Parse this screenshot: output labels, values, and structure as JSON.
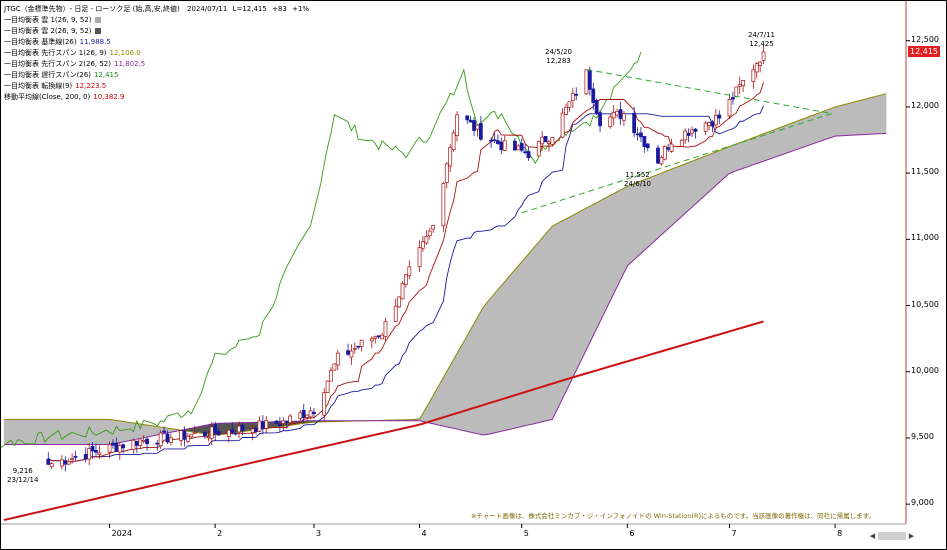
{
  "header": {
    "title": "JTGC（金標準先物）- 日足 - ローソク足 (始,高,安,終値)",
    "date": "2024/07/11",
    "last": "L=12,415",
    "change": "+83",
    "change_pct": "+1%"
  },
  "legend": [
    {
      "label": "一目均衡表 雲 1(26, 9, 52)",
      "value": "",
      "color": "#aaaaaa",
      "kind": "swatch"
    },
    {
      "label": "一目均衡表 雲 2(26, 9, 52)",
      "value": "",
      "color": "#555555",
      "kind": "swatch"
    },
    {
      "label": "一目均衡表 基準線(26)",
      "value": "11,988.5",
      "color": "#1a1aa0",
      "kind": "text"
    },
    {
      "label": "一目均衡表 先行スパン 1(26, 9)",
      "value": "12,106.0",
      "color": "#8a8a00",
      "kind": "text"
    },
    {
      "label": "一目均衡表 先行スパン 2(26, 52)",
      "value": "11,802.5",
      "color": "#8a2aa0",
      "kind": "text"
    },
    {
      "label": "一目均衡表 遅行スパン(26)",
      "value": "12,415",
      "color": "#1a8a1a",
      "kind": "text"
    },
    {
      "label": "一目均衡表 転換線(9)",
      "value": "12,223.5",
      "color": "#cc0000",
      "kind": "text"
    },
    {
      "label": "移動平均線(Close, 200, 0)",
      "value": "10,382.9",
      "color": "#cc0000",
      "kind": "text"
    }
  ],
  "annotations": {
    "low_value": "9,216",
    "low_date": "23/12/14",
    "peak1_date": "24/5/20",
    "peak1_value": "12,283",
    "trough_value": "11,552",
    "trough_date": "24/6/10",
    "peak2_date": "24/7/11",
    "peak2_value": "12,425"
  },
  "last_price_label": "12,415",
  "footnote": "※チャート画像は、株式会社ミンカブ・ジ・インフォノイドの Win-Station(R)によるものです。当該画像の著作権は、同社に帰属します。",
  "scroll": {
    "left": "◀",
    "right": "▶"
  },
  "colors": {
    "up_candle": "#ffffff",
    "down_candle": "#1a1aa0",
    "kijun": "#1a1aa0",
    "tenkan": "#aa1111",
    "chikou": "#3a9a1a",
    "span1": "#8a8a00",
    "span2": "#8a2aa0",
    "cloud_bull": "#bbbbbb",
    "cloud_bear": "#555555",
    "sma": "#cc1111",
    "triangle": "#33aa33"
  },
  "chart_data": {
    "type": "candlestick",
    "y_axis": {
      "min": 8850,
      "max": 12800,
      "ticks": [
        9000,
        9500,
        10000,
        10500,
        11000,
        11500,
        12000,
        12500
      ],
      "tick_labels": [
        "9,000",
        "9,500",
        "10,000",
        "10,500",
        "11,000",
        "11,500",
        "12,000",
        "12,500"
      ]
    },
    "x_axis": {
      "month_labels": [
        {
          "label": "2024",
          "month": "2024-01"
        },
        {
          "label": "2",
          "month": "2024-02"
        },
        {
          "label": "3",
          "month": "2024-03"
        },
        {
          "label": "4",
          "month": "2024-04"
        },
        {
          "label": "5",
          "month": "2024-05"
        },
        {
          "label": "6",
          "month": "2024-06"
        },
        {
          "label": "7",
          "month": "2024-07"
        },
        {
          "label": "8",
          "month": "2024-08"
        }
      ]
    },
    "close_anchors": [
      {
        "date": "2023-12-14",
        "close": 9300
      },
      {
        "date": "2023-12-28",
        "close": 9400
      },
      {
        "date": "2024-01-10",
        "close": 9480
      },
      {
        "date": "2024-01-24",
        "close": 9520
      },
      {
        "date": "2024-02-07",
        "close": 9560
      },
      {
        "date": "2024-02-21",
        "close": 9620
      },
      {
        "date": "2024-03-01",
        "close": 9720
      },
      {
        "date": "2024-03-08",
        "close": 10100
      },
      {
        "date": "2024-03-21",
        "close": 10300
      },
      {
        "date": "2024-03-28",
        "close": 10700
      },
      {
        "date": "2024-04-05",
        "close": 11100
      },
      {
        "date": "2024-04-12",
        "close": 11950
      },
      {
        "date": "2024-04-19",
        "close": 11800
      },
      {
        "date": "2024-04-26",
        "close": 11700
      },
      {
        "date": "2024-05-03",
        "close": 11650
      },
      {
        "date": "2024-05-10",
        "close": 11800
      },
      {
        "date": "2024-05-20",
        "close": 12250
      },
      {
        "date": "2024-05-24",
        "close": 11900
      },
      {
        "date": "2024-05-31",
        "close": 11950
      },
      {
        "date": "2024-06-10",
        "close": 11600
      },
      {
        "date": "2024-06-14",
        "close": 11750
      },
      {
        "date": "2024-06-21",
        "close": 11850
      },
      {
        "date": "2024-06-28",
        "close": 11920
      },
      {
        "date": "2024-07-04",
        "close": 12150
      },
      {
        "date": "2024-07-11",
        "close": 12415
      }
    ],
    "sma200": [
      {
        "date": "2023-12-01",
        "value": 8880
      },
      {
        "date": "2024-02-01",
        "value": 9250
      },
      {
        "date": "2024-04-01",
        "value": 9600
      },
      {
        "date": "2024-05-15",
        "value": 9950
      },
      {
        "date": "2024-07-11",
        "value": 10380
      }
    ],
    "cloud_span1": [
      {
        "date": "2023-12-01",
        "value": 9640
      },
      {
        "date": "2024-01-01",
        "value": 9640
      },
      {
        "date": "2024-02-01",
        "value": 9520
      },
      {
        "date": "2024-03-01",
        "value": 9620
      },
      {
        "date": "2024-04-01",
        "value": 9640
      },
      {
        "date": "2024-04-20",
        "value": 10500
      },
      {
        "date": "2024-05-10",
        "value": 11100
      },
      {
        "date": "2024-06-01",
        "value": 11400
      },
      {
        "date": "2024-07-01",
        "value": 11700
      },
      {
        "date": "2024-08-01",
        "value": 12000
      },
      {
        "date": "2024-08-16",
        "value": 12100
      }
    ],
    "cloud_span2": [
      {
        "date": "2023-12-01",
        "value": 9450
      },
      {
        "date": "2024-01-01",
        "value": 9450
      },
      {
        "date": "2024-02-01",
        "value": 9610
      },
      {
        "date": "2024-03-01",
        "value": 9630
      },
      {
        "date": "2024-04-01",
        "value": 9630
      },
      {
        "date": "2024-04-20",
        "value": 9520
      },
      {
        "date": "2024-05-10",
        "value": 9640
      },
      {
        "date": "2024-06-01",
        "value": 10800
      },
      {
        "date": "2024-07-01",
        "value": 11500
      },
      {
        "date": "2024-08-01",
        "value": 11780
      },
      {
        "date": "2024-08-16",
        "value": 11800
      }
    ],
    "triangle_upper": [
      {
        "date": "2024-05-20",
        "value": 12283
      },
      {
        "date": "2024-07-31",
        "value": 11950
      }
    ],
    "triangle_lower": [
      {
        "date": "2024-05-01",
        "value": 11200
      },
      {
        "date": "2024-07-31",
        "value": 11950
      }
    ]
  }
}
